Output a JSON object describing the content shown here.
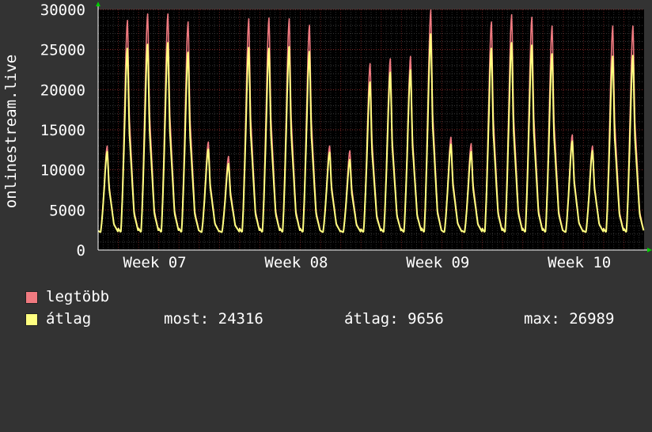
{
  "chart_data": {
    "type": "area",
    "ylabel": "onlinestream.live",
    "ylim": [
      0,
      30000
    ],
    "yticks": [
      "0",
      "5000",
      "10000",
      "15000",
      "20000",
      "25000",
      "30000"
    ],
    "xticks": [
      "Week 07",
      "Week 08",
      "Week 09",
      "Week 10"
    ],
    "grid": true,
    "legend_placement": "bottom-left",
    "series": [
      {
        "name": "legtöbb",
        "color": "#f07a80",
        "daily_peaks": [
          13000,
          28700,
          29500,
          29500,
          28500,
          13500,
          11700,
          28900,
          29000,
          28900,
          28100,
          13000,
          12400,
          23300,
          23900,
          24200,
          30000,
          14100,
          13300,
          28500,
          29400,
          29100,
          28000,
          14400,
          13000,
          28000,
          28000
        ]
      },
      {
        "name": "átlag",
        "color": "#ffff80",
        "daily_peaks": [
          12300,
          25200,
          25700,
          25900,
          24700,
          12600,
          10800,
          25300,
          25200,
          25400,
          24800,
          12200,
          11300,
          21000,
          22200,
          22500,
          27000,
          13200,
          12300,
          25200,
          25900,
          25600,
          24500,
          13600,
          12400,
          24200,
          24300
        ]
      }
    ],
    "daily_min": 2200
  },
  "legend": {
    "max_label": "legtöbb",
    "avg_label": "átlag",
    "stats": {
      "current": "most: 24316",
      "average": "átlag: 9656",
      "maximum": "max: 26989"
    }
  }
}
